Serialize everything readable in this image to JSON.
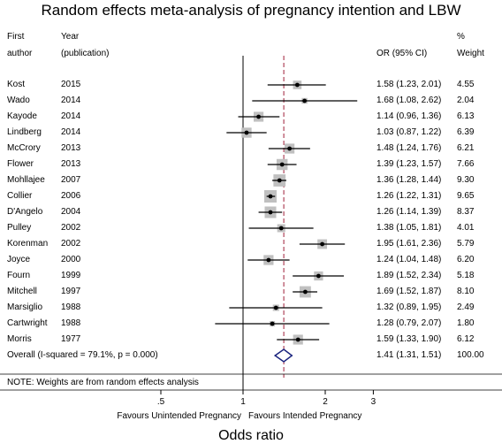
{
  "chart_data": {
    "type": "forest",
    "title": "Random effects meta-analysis of pregnancy intention and LBW",
    "xlabel": "Odds ratio",
    "xscale": "log",
    "xlim": [
      0.35,
      3.3
    ],
    "xticks": [
      "0.5",
      "1",
      "2",
      "3"
    ],
    "xtick_labels": [
      ".5",
      "1",
      "2",
      "3"
    ],
    "reference_line": 1,
    "pooled_line": 1.41,
    "headers": {
      "col1_line1": "First",
      "col1_line2": "author",
      "col2_line1": "Year",
      "col2_line2": "(publication)",
      "col3_line2": "OR (95% CI)",
      "col4_line1": "%",
      "col4_line2": "Weight"
    },
    "studies": [
      {
        "author": "Kost",
        "year": "2015",
        "or": 1.58,
        "lo": 1.23,
        "hi": 2.01,
        "ci_text": "1.58 (1.23, 2.01)",
        "weight": 4.55,
        "weight_text": "4.55"
      },
      {
        "author": "Wado",
        "year": "2014",
        "or": 1.68,
        "lo": 1.08,
        "hi": 2.62,
        "ci_text": "1.68 (1.08, 2.62)",
        "weight": 2.04,
        "weight_text": "2.04"
      },
      {
        "author": "Kayode",
        "year": "2014",
        "or": 1.14,
        "lo": 0.96,
        "hi": 1.36,
        "ci_text": "1.14 (0.96, 1.36)",
        "weight": 6.13,
        "weight_text": "6.13"
      },
      {
        "author": "Lindberg",
        "year": "2014",
        "or": 1.03,
        "lo": 0.87,
        "hi": 1.22,
        "ci_text": "1.03 (0.87, 1.22)",
        "weight": 6.39,
        "weight_text": "6.39"
      },
      {
        "author": "McCrory",
        "year": "2013",
        "or": 1.48,
        "lo": 1.24,
        "hi": 1.76,
        "ci_text": "1.48 (1.24, 1.76)",
        "weight": 6.21,
        "weight_text": "6.21"
      },
      {
        "author": "Flower",
        "year": "2013",
        "or": 1.39,
        "lo": 1.23,
        "hi": 1.57,
        "ci_text": "1.39 (1.23, 1.57)",
        "weight": 7.66,
        "weight_text": "7.66"
      },
      {
        "author": "Mohllajee",
        "year": "2007",
        "or": 1.36,
        "lo": 1.28,
        "hi": 1.44,
        "ci_text": "1.36 (1.28, 1.44)",
        "weight": 9.3,
        "weight_text": "9.30"
      },
      {
        "author": "Collier",
        "year": "2006",
        "or": 1.26,
        "lo": 1.22,
        "hi": 1.31,
        "ci_text": "1.26 (1.22, 1.31)",
        "weight": 9.65,
        "weight_text": "9.65"
      },
      {
        "author": "D'Angelo",
        "year": "2004",
        "or": 1.26,
        "lo": 1.14,
        "hi": 1.39,
        "ci_text": "1.26 (1.14, 1.39)",
        "weight": 8.37,
        "weight_text": "8.37"
      },
      {
        "author": "Pulley",
        "year": "2002",
        "or": 1.38,
        "lo": 1.05,
        "hi": 1.81,
        "ci_text": "1.38 (1.05, 1.81)",
        "weight": 4.01,
        "weight_text": "4.01"
      },
      {
        "author": "Korenman",
        "year": "2002",
        "or": 1.95,
        "lo": 1.61,
        "hi": 2.36,
        "ci_text": "1.95 (1.61, 2.36)",
        "weight": 5.79,
        "weight_text": "5.79"
      },
      {
        "author": "Joyce",
        "year": "2000",
        "or": 1.24,
        "lo": 1.04,
        "hi": 1.48,
        "ci_text": "1.24 (1.04, 1.48)",
        "weight": 6.2,
        "weight_text": "6.20"
      },
      {
        "author": "Fourn",
        "year": "1999",
        "or": 1.89,
        "lo": 1.52,
        "hi": 2.34,
        "ci_text": "1.89 (1.52, 2.34)",
        "weight": 5.18,
        "weight_text": "5.18"
      },
      {
        "author": "Mitchell",
        "year": "1997",
        "or": 1.69,
        "lo": 1.52,
        "hi": 1.87,
        "ci_text": "1.69 (1.52, 1.87)",
        "weight": 8.1,
        "weight_text": "8.10"
      },
      {
        "author": "Marsiglio",
        "year": "1988",
        "or": 1.32,
        "lo": 0.89,
        "hi": 1.95,
        "ci_text": "1.32 (0.89, 1.95)",
        "weight": 2.49,
        "weight_text": "2.49"
      },
      {
        "author": "Cartwright",
        "year": "1988",
        "or": 1.28,
        "lo": 0.79,
        "hi": 2.07,
        "ci_text": "1.28 (0.79, 2.07)",
        "weight": 1.8,
        "weight_text": "1.80"
      },
      {
        "author": "Morris",
        "year": "1977",
        "or": 1.59,
        "lo": 1.33,
        "hi": 1.9,
        "ci_text": "1.59 (1.33, 1.90)",
        "weight": 6.12,
        "weight_text": "6.12"
      }
    ],
    "overall": {
      "label": "Overall  (I-squared = 79.1%, p = 0.000)",
      "or": 1.41,
      "lo": 1.31,
      "hi": 1.51,
      "ci_text": "1.41 (1.31, 1.51)",
      "weight_text": "100.00"
    },
    "note": "NOTE: Weights are from random effects analysis",
    "favours_left": "Favours Unintended Pregnancy",
    "favours_right": "Favours Intended Pregnancy",
    "colors": {
      "marker_box": "#c0c0c0",
      "point": "#000000",
      "ci_line": "#000000",
      "pooled_line": "#a0203a",
      "diamond": "#1a237e"
    }
  }
}
